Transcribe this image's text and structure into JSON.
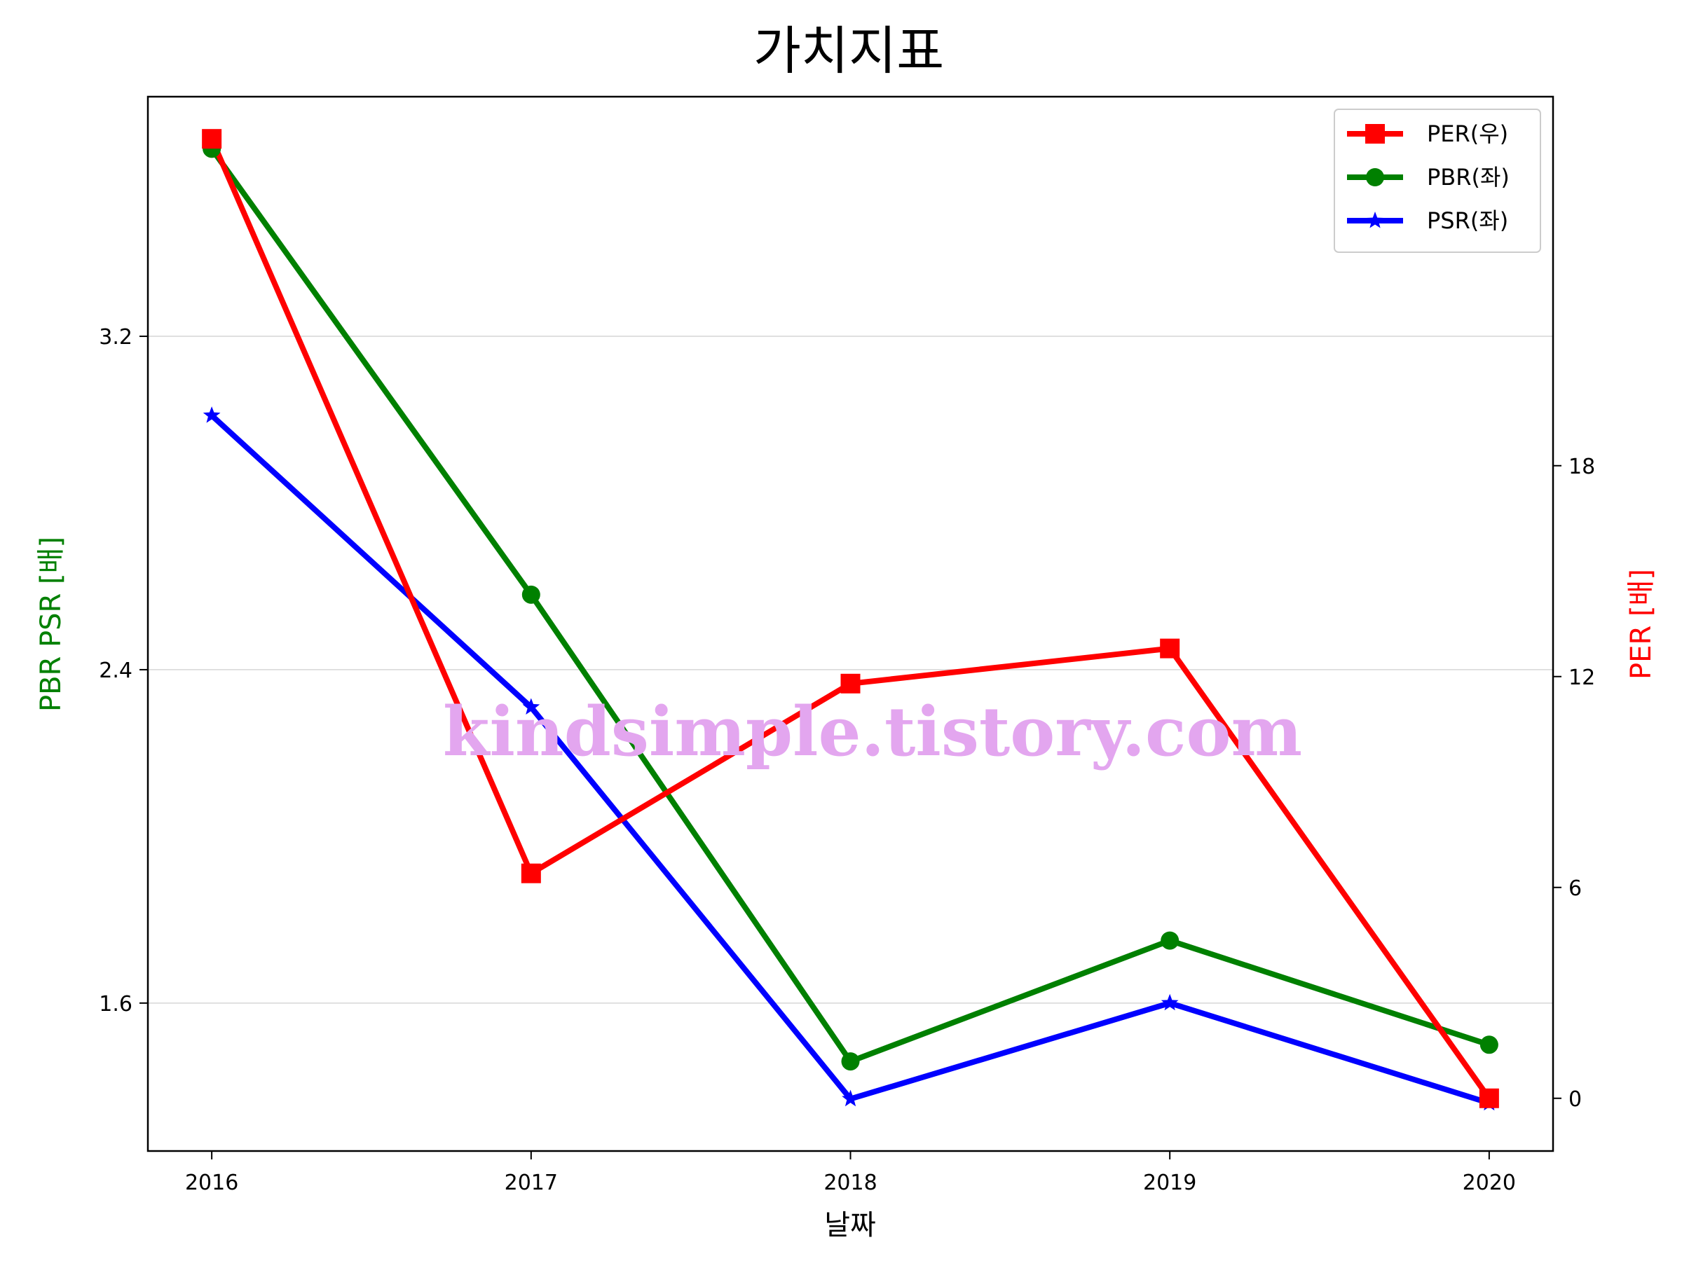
{
  "chart_data": {
    "type": "line",
    "title": "가치지표",
    "xlabel": "날짜",
    "ylabel_left": "PBR PSR [배]",
    "ylabel_right": "PER [배]",
    "ylabel_left_color": "#008000",
    "ylabel_right_color": "#ff0000",
    "categories": [
      "2016",
      "2017",
      "2018",
      "2019",
      "2020"
    ],
    "x_range": [
      2015.8,
      2020.2
    ],
    "left_axis": {
      "range": [
        1.245,
        3.775
      ],
      "ticks": [
        1.6,
        2.4,
        3.2
      ],
      "tick_labels": [
        "1.6",
        "2.4",
        "3.2"
      ]
    },
    "right_axis": {
      "range": [
        -1.5,
        28.5
      ],
      "ticks": [
        0,
        6,
        12,
        18
      ],
      "tick_labels": [
        "0",
        "6",
        "12",
        "18"
      ]
    },
    "grid": true,
    "legend_position": "top-right",
    "series": [
      {
        "name": "PER(우)",
        "axis": "right",
        "color": "#ff0000",
        "marker": "square",
        "values": [
          27.3,
          6.4,
          11.8,
          12.8,
          0.0
        ]
      },
      {
        "name": "PBR(좌)",
        "axis": "left",
        "color": "#008000",
        "marker": "circle",
        "values": [
          3.65,
          2.58,
          1.46,
          1.75,
          1.5
        ]
      },
      {
        "name": "PSR(좌)",
        "axis": "left",
        "color": "#0000ff",
        "marker": "star",
        "values": [
          3.01,
          2.31,
          1.37,
          1.6,
          1.36
        ]
      }
    ],
    "watermark": "kindsimple.tistory.com",
    "watermark_color": "#e3a6ef"
  }
}
